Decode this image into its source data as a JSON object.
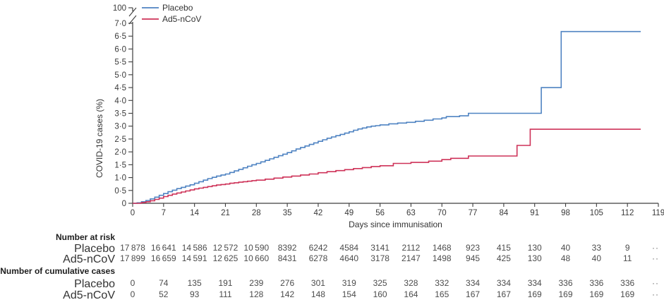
{
  "chart_data": {
    "type": "line",
    "subtype": "kaplan-meier-cumulative-incidence-step",
    "title": "",
    "xlabel": "Days since immunisation",
    "ylabel": "COVID-19 cases (%)",
    "xlim": [
      0,
      119
    ],
    "ylim": [
      0,
      7.0
    ],
    "y_axis_break": true,
    "y_axis_break_top_label": "100",
    "grid": false,
    "legend_position": "top-left-inside",
    "xticks": [
      0,
      7,
      14,
      21,
      28,
      35,
      42,
      49,
      56,
      63,
      70,
      77,
      84,
      91,
      98,
      105,
      112,
      119
    ],
    "yticks": [
      {
        "v": 0.0,
        "label": "0"
      },
      {
        "v": 0.5,
        "label": "0·5"
      },
      {
        "v": 1.0,
        "label": "1·0"
      },
      {
        "v": 1.5,
        "label": "1·5"
      },
      {
        "v": 2.0,
        "label": "2·0"
      },
      {
        "v": 2.5,
        "label": "2·5"
      },
      {
        "v": 3.0,
        "label": "3·0"
      },
      {
        "v": 3.5,
        "label": "3·5"
      },
      {
        "v": 4.0,
        "label": "4·0"
      },
      {
        "v": 4.5,
        "label": "4·5"
      },
      {
        "v": 5.0,
        "label": "5·0"
      },
      {
        "v": 5.5,
        "label": "5·5"
      },
      {
        "v": 6.0,
        "label": "6·0"
      },
      {
        "v": 6.5,
        "label": "6·5"
      },
      {
        "v": 7.0,
        "label": "7·0"
      }
    ],
    "series": [
      {
        "name": "Placebo",
        "color": "#4f83c2",
        "points": [
          [
            0,
            0
          ],
          [
            1,
            0.02
          ],
          [
            2,
            0.06
          ],
          [
            3,
            0.11
          ],
          [
            4,
            0.17
          ],
          [
            5,
            0.24
          ],
          [
            6,
            0.31
          ],
          [
            7,
            0.38
          ],
          [
            8,
            0.45
          ],
          [
            9,
            0.51
          ],
          [
            10,
            0.57
          ],
          [
            11,
            0.62
          ],
          [
            12,
            0.67
          ],
          [
            13,
            0.72
          ],
          [
            14,
            0.78
          ],
          [
            15,
            0.84
          ],
          [
            16,
            0.9
          ],
          [
            17,
            0.96
          ],
          [
            18,
            1.01
          ],
          [
            19,
            1.06
          ],
          [
            20,
            1.1
          ],
          [
            21,
            1.14
          ],
          [
            22,
            1.2
          ],
          [
            23,
            1.26
          ],
          [
            24,
            1.32
          ],
          [
            25,
            1.38
          ],
          [
            26,
            1.44
          ],
          [
            27,
            1.5
          ],
          [
            28,
            1.55
          ],
          [
            29,
            1.61
          ],
          [
            30,
            1.67
          ],
          [
            31,
            1.73
          ],
          [
            32,
            1.79
          ],
          [
            33,
            1.85
          ],
          [
            34,
            1.91
          ],
          [
            35,
            1.97
          ],
          [
            36,
            2.04
          ],
          [
            37,
            2.11
          ],
          [
            38,
            2.17
          ],
          [
            39,
            2.23
          ],
          [
            40,
            2.29
          ],
          [
            41,
            2.35
          ],
          [
            42,
            2.41
          ],
          [
            43,
            2.47
          ],
          [
            44,
            2.53
          ],
          [
            45,
            2.58
          ],
          [
            46,
            2.63
          ],
          [
            47,
            2.68
          ],
          [
            48,
            2.73
          ],
          [
            49,
            2.78
          ],
          [
            50,
            2.84
          ],
          [
            51,
            2.89
          ],
          [
            52,
            2.93
          ],
          [
            53,
            2.97
          ],
          [
            54,
            3.0
          ],
          [
            55,
            3.02
          ],
          [
            56,
            3.05
          ],
          [
            58,
            3.09
          ],
          [
            60,
            3.12
          ],
          [
            62,
            3.15
          ],
          [
            64,
            3.19
          ],
          [
            66,
            3.23
          ],
          [
            68,
            3.28
          ],
          [
            70,
            3.32
          ],
          [
            71,
            3.37
          ],
          [
            74,
            3.4
          ],
          [
            76,
            3.5
          ],
          [
            92.5,
            4.5
          ],
          [
            97,
            6.68
          ],
          [
            115,
            6.68
          ]
        ]
      },
      {
        "name": "Ad5-nCoV",
        "color": "#ce3258",
        "points": [
          [
            0,
            0
          ],
          [
            2,
            0.03
          ],
          [
            3,
            0.06
          ],
          [
            4,
            0.1
          ],
          [
            5,
            0.15
          ],
          [
            6,
            0.2
          ],
          [
            7,
            0.26
          ],
          [
            8,
            0.31
          ],
          [
            9,
            0.36
          ],
          [
            10,
            0.4
          ],
          [
            11,
            0.44
          ],
          [
            12,
            0.48
          ],
          [
            13,
            0.52
          ],
          [
            14,
            0.56
          ],
          [
            15,
            0.59
          ],
          [
            16,
            0.62
          ],
          [
            17,
            0.65
          ],
          [
            18,
            0.68
          ],
          [
            19,
            0.71
          ],
          [
            20,
            0.73
          ],
          [
            21,
            0.75
          ],
          [
            22,
            0.78
          ],
          [
            23,
            0.8
          ],
          [
            24,
            0.82
          ],
          [
            25,
            0.84
          ],
          [
            26,
            0.86
          ],
          [
            27,
            0.88
          ],
          [
            28,
            0.9
          ],
          [
            30,
            0.94
          ],
          [
            32,
            0.98
          ],
          [
            34,
            1.02
          ],
          [
            36,
            1.06
          ],
          [
            38,
            1.1
          ],
          [
            40,
            1.14
          ],
          [
            42,
            1.19
          ],
          [
            44,
            1.23
          ],
          [
            46,
            1.27
          ],
          [
            48,
            1.31
          ],
          [
            50,
            1.35
          ],
          [
            52,
            1.39
          ],
          [
            54,
            1.43
          ],
          [
            56,
            1.46
          ],
          [
            59,
            1.55
          ],
          [
            63,
            1.59
          ],
          [
            67,
            1.64
          ],
          [
            70,
            1.7
          ],
          [
            72,
            1.75
          ],
          [
            76,
            1.84
          ],
          [
            87,
            2.25
          ],
          [
            90,
            2.88
          ],
          [
            115,
            2.88
          ]
        ]
      }
    ]
  },
  "risk_table": {
    "sections": [
      {
        "header": "Number at risk",
        "rows": [
          {
            "label": "Placebo",
            "values": [
              "17 878",
              "16 641",
              "14 586",
              "12 572",
              "10 590",
              "8392",
              "6242",
              "4584",
              "3141",
              "2112",
              "1468",
              "923",
              "415",
              "130",
              "40",
              "33",
              "9"
            ]
          },
          {
            "label": "Ad5-nCoV",
            "values": [
              "17 899",
              "16 659",
              "14 591",
              "12 625",
              "10 660",
              "8431",
              "6278",
              "4640",
              "3178",
              "2147",
              "1498",
              "945",
              "425",
              "130",
              "48",
              "40",
              "11"
            ]
          }
        ]
      },
      {
        "header": "Number of cumulative cases",
        "rows": [
          {
            "label": "Placebo",
            "values": [
              "0",
              "74",
              "135",
              "191",
              "239",
              "276",
              "301",
              "319",
              "325",
              "328",
              "332",
              "334",
              "334",
              "334",
              "336",
              "336",
              "336"
            ]
          },
          {
            "label": "Ad5-nCoV",
            "values": [
              "0",
              "52",
              "93",
              "111",
              "128",
              "142",
              "148",
              "154",
              "160",
              "164",
              "165",
              "167",
              "167",
              "169",
              "169",
              "169",
              "169"
            ]
          }
        ]
      }
    ],
    "trailing_mark": "··"
  }
}
